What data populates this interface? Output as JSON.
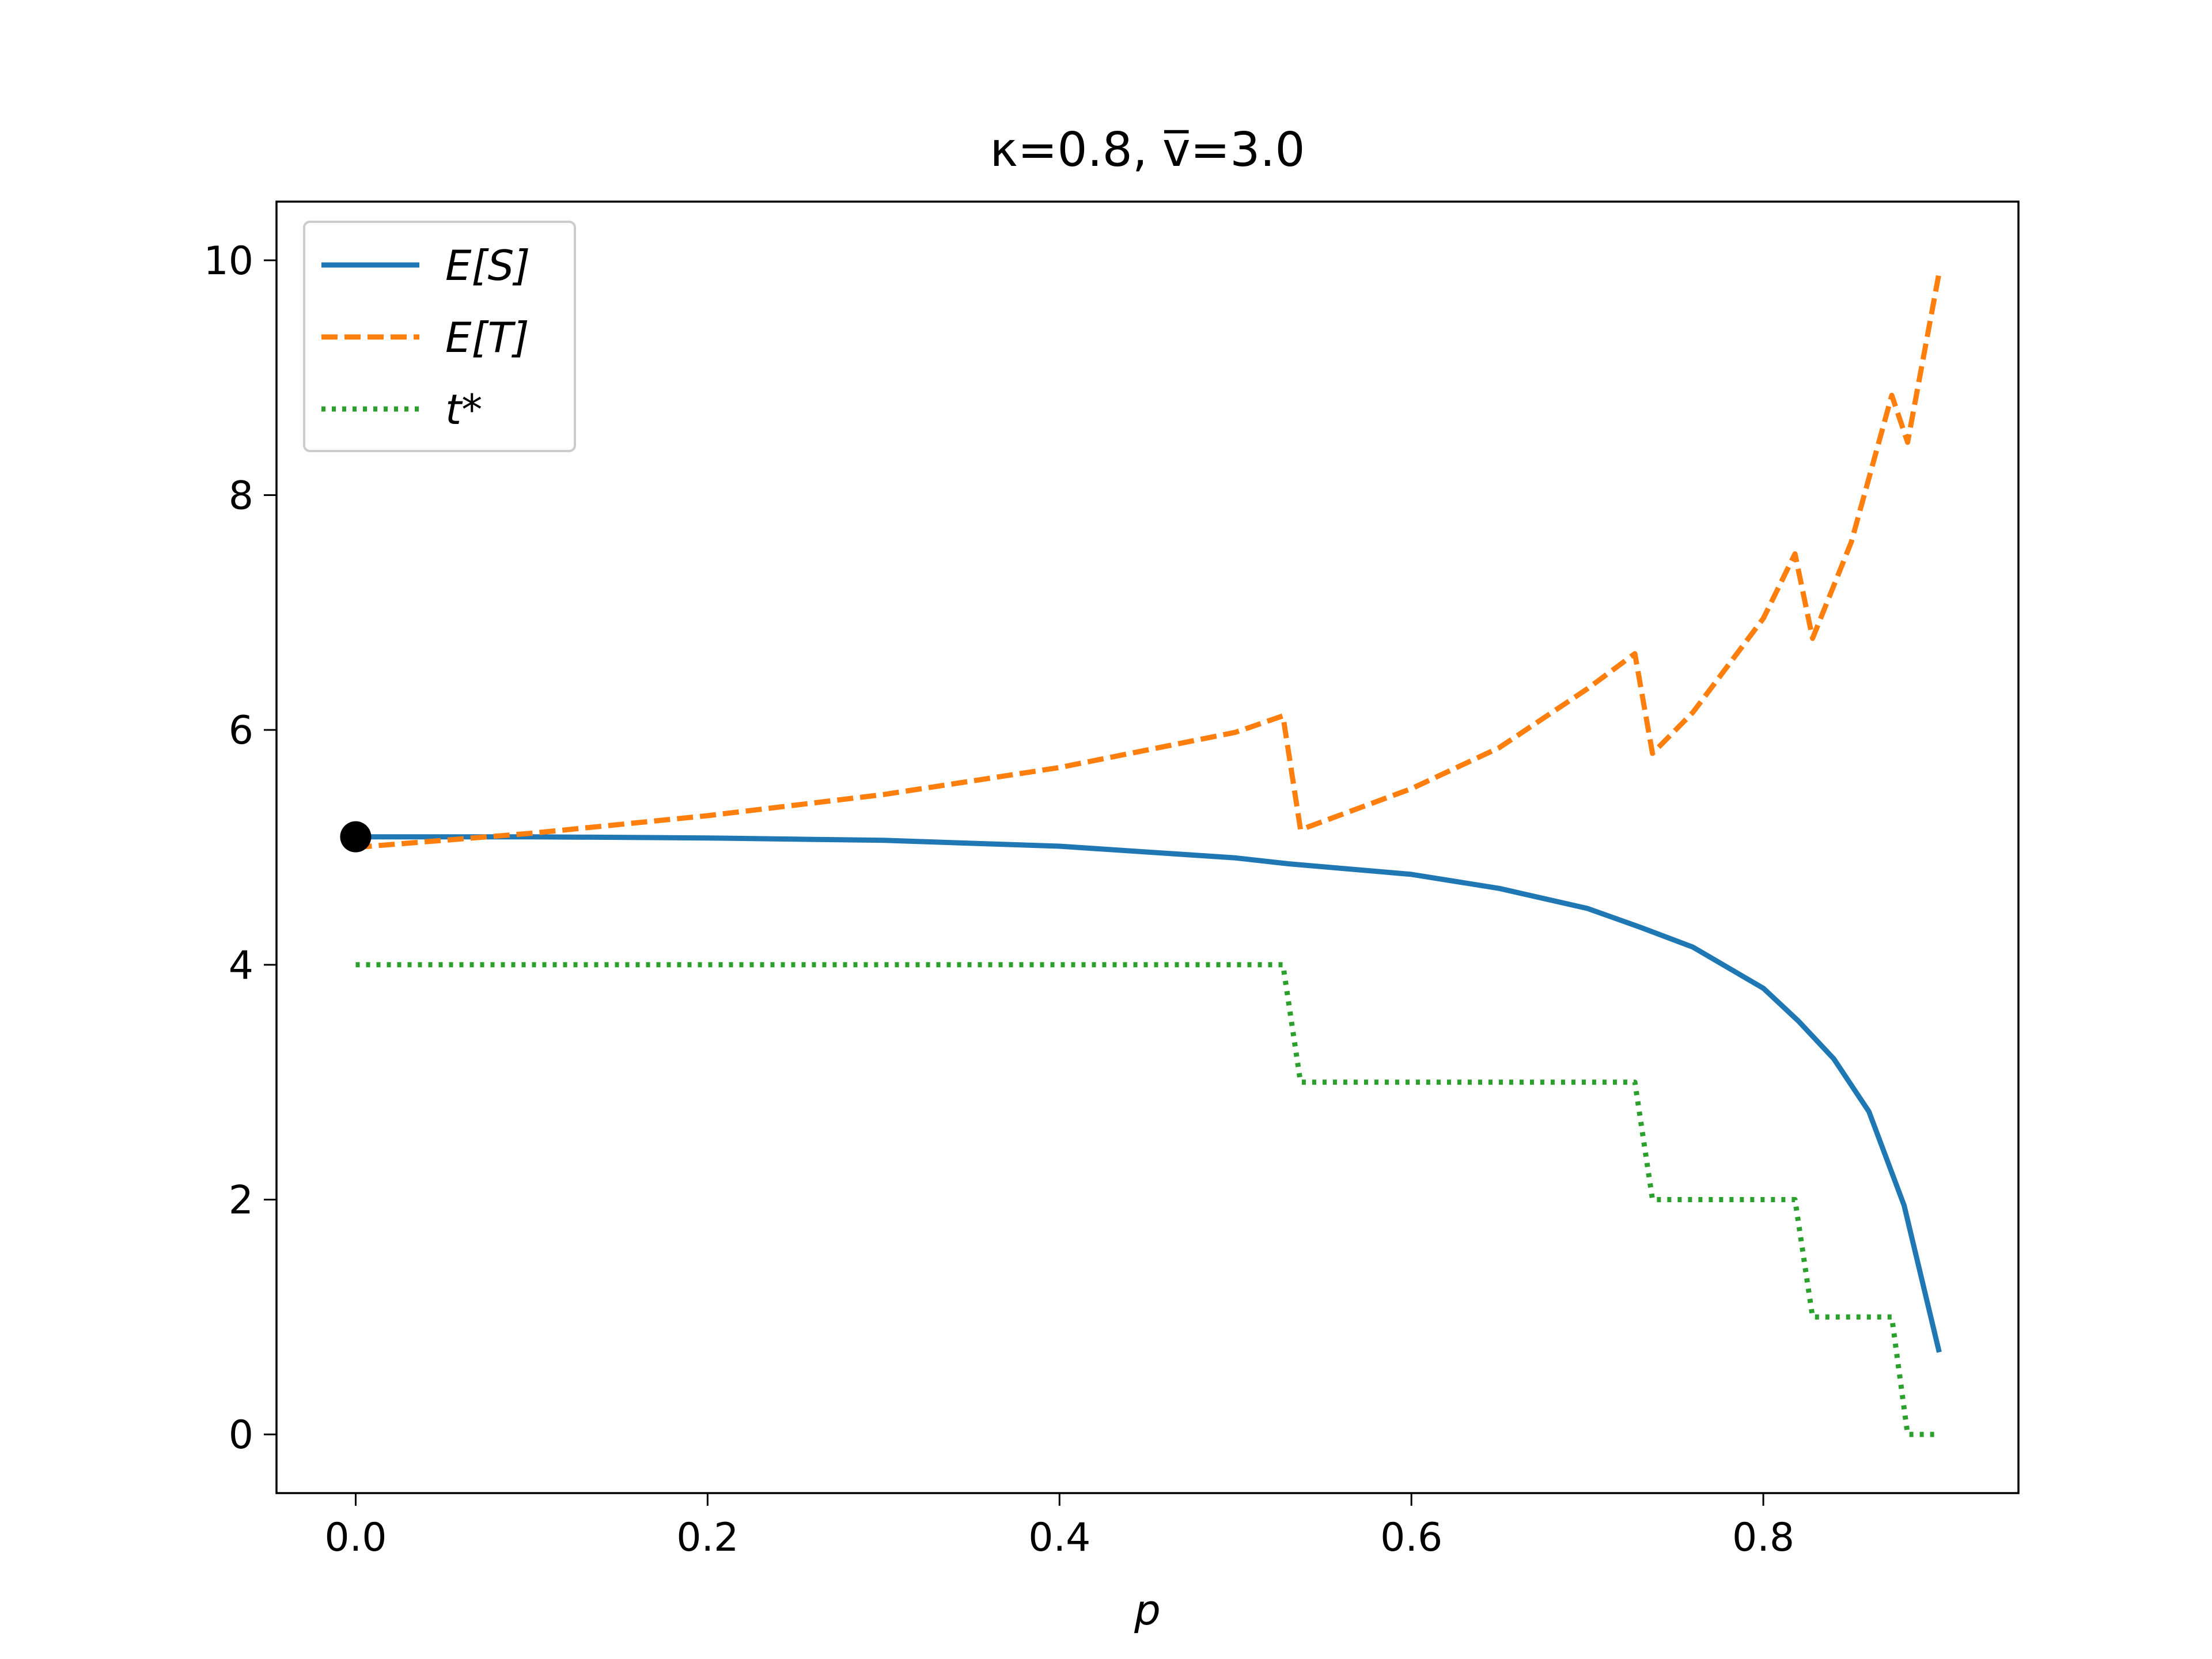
{
  "chart_data": {
    "type": "line",
    "title": "κ=0.8, v̅=3.0",
    "xlabel": "p",
    "ylabel": "",
    "xlim": [
      -0.045,
      0.945
    ],
    "ylim": [
      -0.5,
      10.5
    ],
    "xticks": [
      0.0,
      0.2,
      0.4,
      0.6,
      0.8
    ],
    "xtick_labels": [
      "0.0",
      "0.2",
      "0.4",
      "0.6",
      "0.8"
    ],
    "yticks": [
      0,
      2,
      4,
      6,
      8,
      10
    ],
    "ytick_labels": [
      "0",
      "2",
      "4",
      "6",
      "8",
      "10"
    ],
    "grid": false,
    "legend_position": "top-left",
    "series": [
      {
        "name": "E[S]",
        "style": "solid",
        "color": "#1f77b4",
        "x": [
          0.0,
          0.1,
          0.2,
          0.3,
          0.4,
          0.5,
          0.53,
          0.6,
          0.65,
          0.7,
          0.73,
          0.76,
          0.8,
          0.82,
          0.84,
          0.86,
          0.88,
          0.9
        ],
        "y": [
          5.09,
          5.09,
          5.08,
          5.06,
          5.01,
          4.91,
          4.86,
          4.77,
          4.65,
          4.48,
          4.32,
          4.15,
          3.8,
          3.52,
          3.2,
          2.75,
          1.95,
          0.7
        ]
      },
      {
        "name": "E[T]",
        "style": "dashed",
        "color": "#ff7f0e",
        "x": [
          0.0,
          0.1,
          0.2,
          0.3,
          0.4,
          0.5,
          0.527,
          0.537,
          0.6,
          0.65,
          0.7,
          0.727,
          0.737,
          0.76,
          0.8,
          0.818,
          0.828,
          0.85,
          0.873,
          0.882,
          0.9
        ],
        "y": [
          5.0,
          5.12,
          5.27,
          5.45,
          5.68,
          5.98,
          6.12,
          5.15,
          5.5,
          5.85,
          6.35,
          6.65,
          5.8,
          6.15,
          6.95,
          7.5,
          6.78,
          7.6,
          8.85,
          8.45,
          9.9
        ]
      },
      {
        "name": "t*",
        "style": "dotted",
        "color": "#2ca02c",
        "x": [
          0.0,
          0.527,
          0.537,
          0.727,
          0.737,
          0.818,
          0.828,
          0.873,
          0.882,
          0.9
        ],
        "y": [
          4,
          4,
          3,
          3,
          2,
          2,
          1,
          1,
          0,
          0
        ]
      }
    ],
    "marker": {
      "x": 0.0,
      "y": 5.09,
      "color": "#000000"
    }
  }
}
